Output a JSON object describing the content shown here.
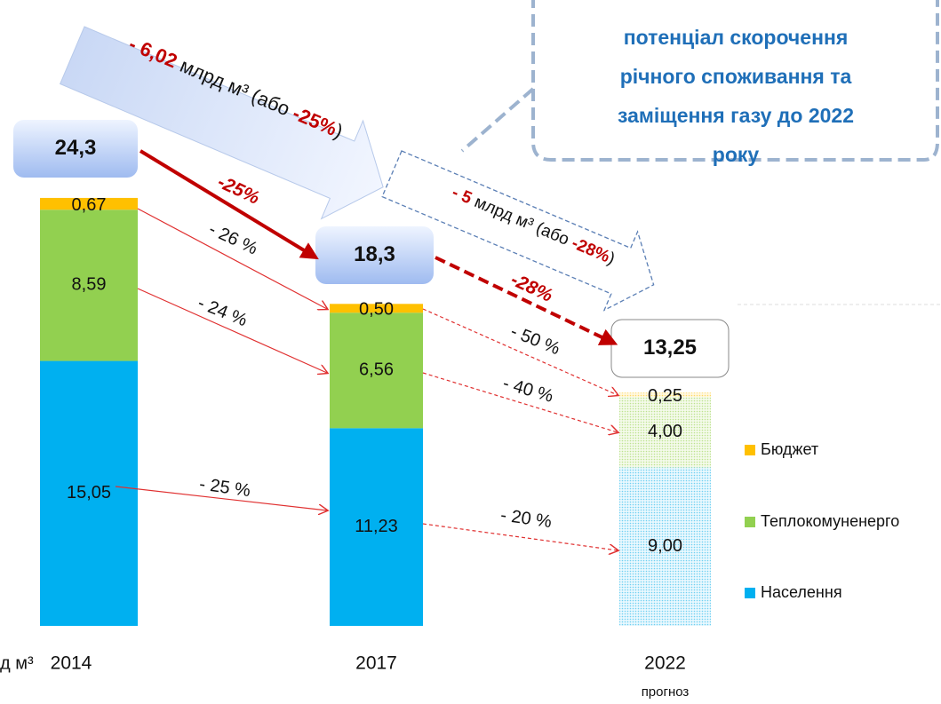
{
  "chart_data": {
    "type": "stacked_bar",
    "unit_label": "д м³",
    "categories": [
      "2014",
      "2017",
      "2022"
    ],
    "category_notes": [
      null,
      null,
      "прогноз"
    ],
    "series": [
      {
        "name": "Населення",
        "color": "#00b0f0",
        "values": [
          15.05,
          11.23,
          9.0
        ],
        "value_labels": [
          "15,05",
          "11,23",
          "9,00"
        ]
      },
      {
        "name": "Теплокомуненерго",
        "color": "#92d050",
        "values": [
          8.59,
          6.56,
          4.0
        ],
        "value_labels": [
          "8,59",
          "6,56",
          "4,00"
        ]
      },
      {
        "name": "Бюджет",
        "color": "#ffc000",
        "values": [
          0.67,
          0.5,
          0.25
        ],
        "value_labels": [
          "0,67",
          "0,50",
          "0,25"
        ]
      }
    ],
    "totals": {
      "values": [
        24.3,
        18.3,
        13.25
      ],
      "value_labels": [
        "24,3",
        "18,3",
        "13,25"
      ]
    },
    "total_change_labels": [
      "-25%",
      "-28%"
    ],
    "segment_change_labels": [
      "- 26 %",
      "- 24 %",
      "- 25 %",
      "- 50 %",
      "- 40 %",
      "- 20 %"
    ],
    "big_arrows": [
      {
        "parts": [
          "- 6,02",
          " млрд м³ (або ",
          "-25%",
          ")"
        ]
      },
      {
        "parts": [
          "- 5",
          " млрд м³ (або ",
          "-28%",
          ")"
        ]
      }
    ],
    "callout": [
      "потенціал скорочення",
      "річного споживання та",
      "заміщення газу до 2022",
      "року"
    ],
    "legend": true
  }
}
